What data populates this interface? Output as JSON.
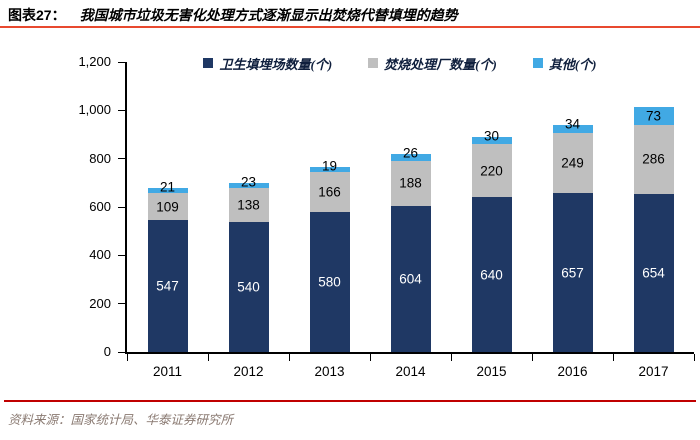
{
  "header": {
    "label": "图表27：",
    "title": "我国城市垃圾无害化处理方式逐渐显示出焚烧代替填埋的趋势"
  },
  "footer": {
    "source": "资料来源：国家统计局、华泰证券研究所"
  },
  "colors": {
    "landfill": "#1F3864",
    "incineration": "#BFBFBF",
    "other": "#41A9E4",
    "title_rule": "#E8492F",
    "footer_rule": "#C00000",
    "source_text": "#8A7A72",
    "axis": "#000000"
  },
  "chart_data": {
    "type": "bar",
    "stacked": true,
    "title": "我国城市垃圾无害化处理方式逐渐显示出焚烧代替填埋的趋势",
    "categories": [
      "2011",
      "2012",
      "2013",
      "2014",
      "2015",
      "2016",
      "2017"
    ],
    "series": [
      {
        "name": "卫生填埋场数量(个)",
        "color_key": "landfill",
        "values": [
          547,
          540,
          580,
          604,
          640,
          657,
          654
        ],
        "label_color": "#FFFFFF"
      },
      {
        "name": "焚烧处理厂数量(个)",
        "color_key": "incineration",
        "values": [
          109,
          138,
          166,
          188,
          220,
          249,
          286
        ],
        "label_color": "#000000"
      },
      {
        "name": "其他(个)",
        "color_key": "other",
        "values": [
          21,
          23,
          19,
          26,
          30,
          34,
          73
        ],
        "label_color": "#000000"
      }
    ],
    "xlabel": "",
    "ylabel": "",
    "ylim": [
      0,
      1200
    ],
    "ytick_step": 200,
    "ytick_labels": [
      "0",
      "200",
      "400",
      "600",
      "800",
      "1,000",
      "1,200"
    ],
    "legend_position": "top",
    "grid": false,
    "data_labels": true
  }
}
